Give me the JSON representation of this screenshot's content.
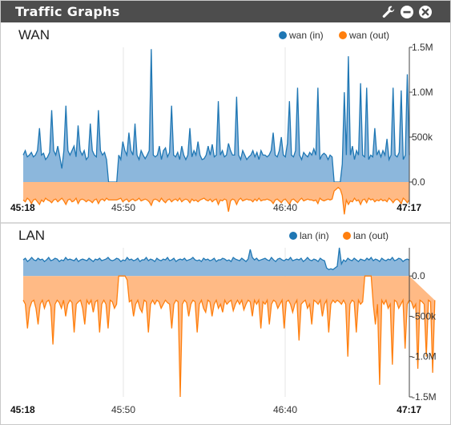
{
  "window": {
    "title": "Traffic Graphs",
    "icons": [
      "wrench-icon",
      "minimize-icon",
      "close-icon"
    ]
  },
  "colors": {
    "in_line": "#1f77b4",
    "in_fill": "#8cb7dc",
    "out_line": "#ff7f0e",
    "out_fill": "#ffba85",
    "titlebar": "#4d4d4d"
  },
  "chart_data": [
    {
      "type": "area",
      "title": "WAN",
      "legend": [
        "wan (in)",
        "wan (out)"
      ],
      "legend_position": "top-right",
      "ylim": [
        -250000,
        1500000
      ],
      "yticks": [
        1500000,
        1000000,
        500000,
        0
      ],
      "ytick_labels": [
        "1.5M",
        "1.0M",
        "500k",
        "0.0"
      ],
      "xtick_labels": [
        "45:18",
        "45:50",
        "46:40",
        "47:17"
      ],
      "grid": true,
      "series": [
        {
          "name": "wan (in)",
          "values": [
            300000,
            350000,
            280000,
            300000,
            330000,
            280000,
            300000,
            350000,
            600000,
            300000,
            320000,
            250000,
            280000,
            330000,
            800000,
            350000,
            300000,
            400000,
            280000,
            150000,
            350000,
            850000,
            350000,
            300000,
            350000,
            400000,
            280000,
            630000,
            350000,
            300000,
            350000,
            250000,
            280000,
            650000,
            350000,
            300000,
            280000,
            800000,
            350000,
            300000,
            330000,
            250000,
            0,
            0,
            0,
            0,
            0,
            300000,
            250000,
            450000,
            350000,
            300000,
            550000,
            350000,
            300000,
            650000,
            300000,
            250000,
            350000,
            300000,
            260000,
            300000,
            350000,
            1480000,
            300000,
            280000,
            300000,
            400000,
            250000,
            350000,
            380000,
            280000,
            330000,
            850000,
            300000,
            280000,
            330000,
            250000,
            400000,
            300000,
            250000,
            300000,
            600000,
            280000,
            350000,
            300000,
            450000,
            300000,
            250000,
            260000,
            300000,
            400000,
            300000,
            420000,
            280000,
            300000,
            900000,
            300000,
            350000,
            280000,
            300000,
            430000,
            350000,
            300000,
            300000,
            950000,
            300000,
            250000,
            350000,
            300000,
            250000,
            280000,
            300000,
            350000,
            280000,
            330000,
            250000,
            350000,
            300000,
            300000,
            280000,
            300000,
            350000,
            550000,
            300000,
            280000,
            350000,
            500000,
            300000,
            280000,
            430000,
            900000,
            300000,
            280000,
            350000,
            1050000,
            300000,
            250000,
            330000,
            300000,
            280000,
            330000,
            300000,
            370000,
            300000,
            1050000,
            250000,
            300000,
            320000,
            300000,
            250000,
            300000,
            280000,
            0,
            0,
            0,
            0,
            200000,
            1000000,
            300000,
            1400000,
            300000,
            400000,
            250000,
            350000,
            300000,
            1100000,
            300000,
            280000,
            1050000,
            250000,
            300000,
            280000,
            600000,
            300000,
            350000,
            280000,
            350000,
            300000,
            480000,
            250000,
            300000,
            1050000,
            300000,
            280000,
            330000,
            1020000,
            250000,
            300000,
            1200000,
            300000
          ]
        },
        {
          "name": "wan (out)",
          "values": [
            -200000,
            -220000,
            -180000,
            -200000,
            -240000,
            -200000,
            -190000,
            -220000,
            -250000,
            -200000,
            -220000,
            -180000,
            -200000,
            -210000,
            -230000,
            -200000,
            -190000,
            -220000,
            -200000,
            -180000,
            -210000,
            -250000,
            -200000,
            -190000,
            -220000,
            -210000,
            -180000,
            -240000,
            -200000,
            -190000,
            -200000,
            -220000,
            -200000,
            -210000,
            -230000,
            -200000,
            -190000,
            -240000,
            -200000,
            -190000,
            -210000,
            -180000,
            -200000,
            -200000,
            -200000,
            -200000,
            -200000,
            -190000,
            -180000,
            -220000,
            -200000,
            -190000,
            -220000,
            -200000,
            -190000,
            -210000,
            -200000,
            -180000,
            -210000,
            -200000,
            -190000,
            -200000,
            -220000,
            -260000,
            -200000,
            -190000,
            -200000,
            -220000,
            -180000,
            -210000,
            -230000,
            -200000,
            -190000,
            -220000,
            -200000,
            -190000,
            -210000,
            -180000,
            -220000,
            -200000,
            -190000,
            -200000,
            -230000,
            -190000,
            -210000,
            -200000,
            -220000,
            -200000,
            -190000,
            -180000,
            -200000,
            -210000,
            -190000,
            -220000,
            -200000,
            -190000,
            -250000,
            -200000,
            -210000,
            -190000,
            -200000,
            -330000,
            -210000,
            -190000,
            -200000,
            -250000,
            -200000,
            -180000,
            -210000,
            -200000,
            -190000,
            -200000,
            -200000,
            -220000,
            -190000,
            -210000,
            -180000,
            -210000,
            -200000,
            -200000,
            -190000,
            -200000,
            -210000,
            -240000,
            -200000,
            -190000,
            -210000,
            -230000,
            -200000,
            -190000,
            -220000,
            -250000,
            -200000,
            -190000,
            -210000,
            -230000,
            -200000,
            -180000,
            -210000,
            -200000,
            -190000,
            -200000,
            -200000,
            -210000,
            -200000,
            -240000,
            -180000,
            -200000,
            -210000,
            -200000,
            -190000,
            -200000,
            -190000,
            -100000,
            -80000,
            -60000,
            -80000,
            -150000,
            -360000,
            -200000,
            -250000,
            -210000,
            -220000,
            -180000,
            -210000,
            -200000,
            -250000,
            -200000,
            -190000,
            -230000,
            -180000,
            -200000,
            -190000,
            -220000,
            -200000,
            -210000,
            -190000,
            -210000,
            -200000,
            -220000,
            -180000,
            -200000,
            -230000,
            -200000,
            -190000,
            -210000,
            -240000,
            -180000,
            -200000,
            -230000,
            -200000
          ]
        }
      ]
    },
    {
      "type": "area",
      "title": "LAN",
      "legend": [
        "lan (in)",
        "lan (out)"
      ],
      "legend_position": "top-right",
      "ylim": [
        -1500000,
        350000
      ],
      "yticks": [
        0,
        -500000,
        -1000000,
        -1500000
      ],
      "ytick_labels": [
        "0.0",
        "-500k",
        "-1.0M",
        "-1.5M"
      ],
      "xtick_labels": [
        "45:18",
        "45:50",
        "46:40",
        "47:17"
      ],
      "grid": true,
      "series": [
        {
          "name": "lan (in)",
          "values": [
            200000,
            220000,
            180000,
            200000,
            230000,
            200000,
            190000,
            220000,
            200000,
            210000,
            180000,
            200000,
            230000,
            190000,
            200000,
            220000,
            210000,
            180000,
            200000,
            190000,
            230000,
            200000,
            210000,
            200000,
            190000,
            220000,
            180000,
            200000,
            210000,
            200000,
            190000,
            220000,
            200000,
            180000,
            210000,
            200000,
            220000,
            190000,
            200000,
            210000,
            230000,
            200000,
            190000,
            200000,
            220000,
            210000,
            180000,
            200000,
            190000,
            230000,
            200000,
            210000,
            190000,
            200000,
            220000,
            180000,
            200000,
            200000,
            230000,
            190000,
            210000,
            200000,
            180000,
            220000,
            200000,
            190000,
            210000,
            200000,
            230000,
            190000,
            200000,
            220000,
            180000,
            200000,
            210000,
            200000,
            220000,
            190000,
            200000,
            210000,
            230000,
            200000,
            190000,
            200000,
            180000,
            220000,
            200000,
            210000,
            190000,
            200000,
            220000,
            180000,
            200000,
            200000,
            220000,
            210000,
            190000,
            200000,
            180000,
            230000,
            210000,
            200000,
            190000,
            220000,
            200000,
            180000,
            210000,
            330000,
            230000,
            200000,
            220000,
            190000,
            200000,
            210000,
            220000,
            200000,
            190000,
            230000,
            200000,
            180000,
            210000,
            220000,
            200000,
            190000,
            210000,
            200000,
            230000,
            190000,
            200000,
            210000,
            200000,
            220000,
            180000,
            200000,
            230000,
            200000,
            190000,
            210000,
            200000,
            180000,
            220000,
            200000,
            190000,
            100000,
            80000,
            90000,
            80000,
            100000,
            120000,
            350000,
            150000,
            200000,
            180000,
            220000,
            200000,
            190000,
            220000,
            200000,
            180000,
            210000,
            200000,
            190000,
            220000,
            200000,
            230000,
            190000,
            210000,
            200000,
            180000,
            220000,
            200000,
            190000,
            210000,
            200000,
            230000,
            190000,
            200000,
            220000,
            210000,
            180000,
            200000,
            210000,
            200000
          ]
        },
        {
          "name": "lan (out)",
          "values": [
            -300000,
            -350000,
            -650000,
            -400000,
            -320000,
            -300000,
            -400000,
            -600000,
            -350000,
            -300000,
            -400000,
            -320000,
            -300000,
            -380000,
            -850000,
            -350000,
            -300000,
            -330000,
            -400000,
            -300000,
            -500000,
            -350000,
            -300000,
            -330000,
            -700000,
            -350000,
            -320000,
            -300000,
            -400000,
            -600000,
            -300000,
            -350000,
            -300000,
            -450000,
            -320000,
            -300000,
            -700000,
            -350000,
            -300000,
            -350000,
            -650000,
            -300000,
            -320000,
            -400000,
            -350000,
            0,
            0,
            0,
            0,
            -50000,
            -320000,
            -300000,
            -500000,
            -350000,
            -300000,
            -400000,
            -450000,
            -300000,
            -320000,
            -700000,
            -350000,
            -300000,
            -350000,
            -300000,
            -320000,
            -400000,
            -350000,
            -300000,
            -330000,
            -350000,
            -650000,
            -350000,
            -300000,
            -320000,
            -1500000,
            -350000,
            -300000,
            -330000,
            -500000,
            -350000,
            -300000,
            -320000,
            -700000,
            -350000,
            -300000,
            -400000,
            -450000,
            -300000,
            -320000,
            -500000,
            -350000,
            -300000,
            -400000,
            -350000,
            -450000,
            -300000,
            -350000,
            -320000,
            -300000,
            -430000,
            -350000,
            -300000,
            -350000,
            -300000,
            -420000,
            -350000,
            -300000,
            -320000,
            -500000,
            -300000,
            -350000,
            -300000,
            -650000,
            -320000,
            -350000,
            -300000,
            -600000,
            -350000,
            -300000,
            -320000,
            -400000,
            -350000,
            -300000,
            -650000,
            -320000,
            -300000,
            -350000,
            -450000,
            -350000,
            -300000,
            -800000,
            -350000,
            -320000,
            -300000,
            -400000,
            -350000,
            -600000,
            -300000,
            -320000,
            -350000,
            -300000,
            -500000,
            -350000,
            -300000,
            -700000,
            -350000,
            -300000,
            -330000,
            -300000,
            -320000,
            -350000,
            -300000,
            -350000,
            -1000000,
            -350000,
            -300000,
            -320000,
            -700000,
            -300000,
            -350000,
            -320000,
            0,
            0,
            0,
            0,
            -350000,
            -600000,
            -350000,
            -1350000,
            -300000,
            -350000,
            -300000,
            -400000,
            -350000,
            -1100000,
            -300000,
            -320000,
            -400000,
            -350000,
            -300000,
            -900000,
            -350000,
            -300000,
            -320000,
            -400000,
            -350000,
            -1150000,
            -300000,
            -320000,
            -350000,
            -1000000,
            -300000,
            -320000,
            -1200000,
            -300000
          ]
        }
      ]
    }
  ]
}
